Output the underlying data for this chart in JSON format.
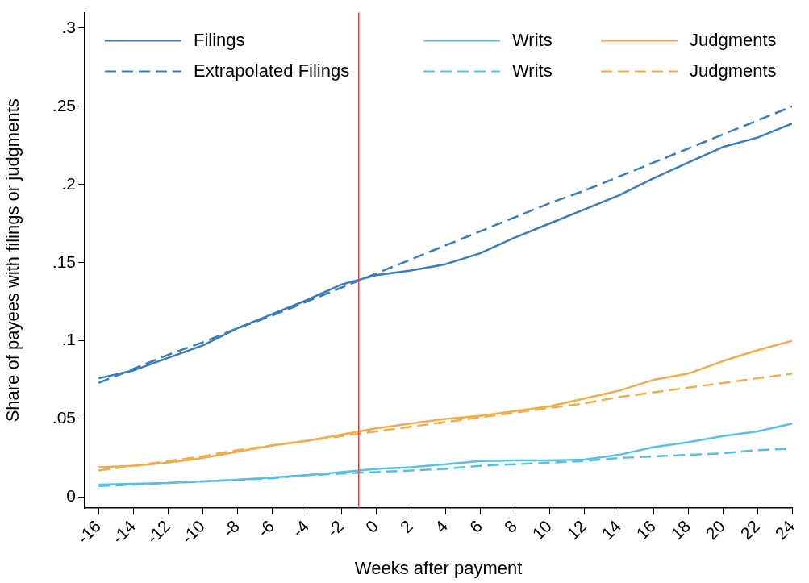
{
  "chart_data": {
    "type": "line",
    "xlabel": "Weeks after payment",
    "ylabel": "Share of payees with filings or judgments",
    "x": [
      -16,
      -14,
      -12,
      -10,
      -8,
      -6,
      -4,
      -2,
      0,
      2,
      4,
      6,
      8,
      10,
      12,
      14,
      16,
      18,
      20,
      22,
      24
    ],
    "series": [
      {
        "name": "Filings",
        "color": "#3a7dbd",
        "line_style": "solid",
        "values": [
          0.076,
          0.081,
          0.089,
          0.097,
          0.108,
          0.117,
          0.126,
          0.136,
          0.142,
          0.145,
          0.149,
          0.156,
          0.166,
          0.175,
          0.184,
          0.193,
          0.204,
          0.214,
          0.224,
          0.23,
          0.239
        ]
      },
      {
        "name": "Extrapolated Filings",
        "color": "#3a7dbd",
        "line_style": "dashed",
        "values": [
          0.073,
          0.082,
          0.091,
          0.099,
          0.108,
          0.116,
          0.125,
          0.134,
          0.143,
          0.152,
          0.161,
          0.17,
          0.179,
          0.188,
          0.196,
          0.205,
          0.214,
          0.223,
          0.232,
          0.241,
          0.25
        ]
      },
      {
        "name": "Writs",
        "color": "#5bbfe0",
        "line_style": "solid",
        "values": [
          0.008,
          0.0085,
          0.009,
          0.01,
          0.011,
          0.0125,
          0.014,
          0.016,
          0.018,
          0.019,
          0.021,
          0.023,
          0.0235,
          0.0235,
          0.024,
          0.027,
          0.032,
          0.035,
          0.039,
          0.042,
          0.047
        ]
      },
      {
        "name": "Writs",
        "color": "#5bbfe0",
        "line_style": "dashed",
        "values": [
          0.007,
          0.008,
          0.009,
          0.01,
          0.011,
          0.012,
          0.014,
          0.015,
          0.016,
          0.017,
          0.018,
          0.02,
          0.021,
          0.022,
          0.023,
          0.025,
          0.026,
          0.027,
          0.028,
          0.03,
          0.031
        ]
      },
      {
        "name": "Judgments",
        "color": "#f0ad4e",
        "line_style": "solid",
        "values": [
          0.019,
          0.02,
          0.022,
          0.025,
          0.029,
          0.033,
          0.036,
          0.04,
          0.044,
          0.047,
          0.05,
          0.052,
          0.055,
          0.058,
          0.063,
          0.068,
          0.075,
          0.079,
          0.087,
          0.094,
          0.1
        ]
      },
      {
        "name": "Judgments",
        "color": "#f0ad4e",
        "line_style": "dashed",
        "values": [
          0.017,
          0.02,
          0.023,
          0.026,
          0.03,
          0.033,
          0.036,
          0.039,
          0.042,
          0.045,
          0.048,
          0.051,
          0.054,
          0.057,
          0.06,
          0.064,
          0.067,
          0.07,
          0.073,
          0.076,
          0.079
        ]
      }
    ],
    "xlim": [
      -16.8,
      24
    ],
    "xticks": [
      -16,
      -14,
      -12,
      -10,
      -8,
      -6,
      -4,
      -2,
      0,
      2,
      4,
      6,
      8,
      10,
      12,
      14,
      16,
      18,
      20,
      22,
      24
    ],
    "ylim": [
      -0.007,
      0.31
    ],
    "yticks": [
      {
        "value": 0,
        "label": "0"
      },
      {
        "value": 0.05,
        "label": ".05"
      },
      {
        "value": 0.1,
        "label": ".1"
      },
      {
        "value": 0.15,
        "label": ".15"
      },
      {
        "value": 0.2,
        "label": ".2"
      },
      {
        "value": 0.25,
        "label": ".25"
      },
      {
        "value": 0.3,
        "label": ".3"
      }
    ],
    "ref_lines": [
      {
        "axis": "x",
        "value": -1,
        "color": "#e8413a"
      }
    ],
    "grid": false,
    "legend": "top",
    "marker": "none"
  }
}
